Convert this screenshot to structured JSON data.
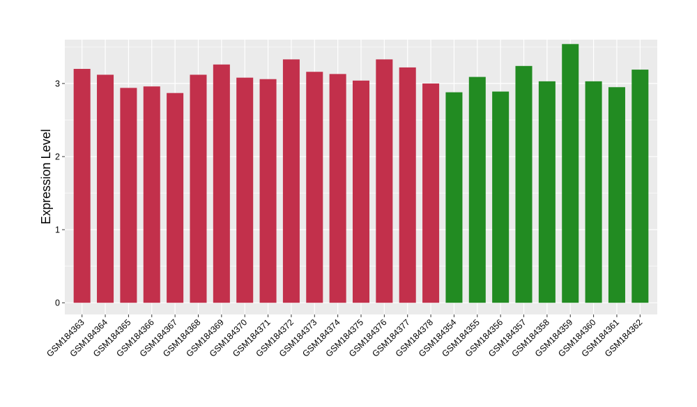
{
  "chart_data": {
    "type": "bar",
    "ylabel": "Expression Level",
    "xlabel": "",
    "title": "",
    "ylim": [
      -0.16,
      3.6
    ],
    "yticks": [
      0,
      1,
      2,
      3
    ],
    "grid": true,
    "background": "#EBEBEB",
    "group_colors": [
      "#C2304B",
      "#228B22"
    ],
    "categories": [
      "GSM184363",
      "GSM184364",
      "GSM184365",
      "GSM184366",
      "GSM184367",
      "GSM184368",
      "GSM184369",
      "GSM184370",
      "GSM184371",
      "GSM184372",
      "GSM184373",
      "GSM184374",
      "GSM184375",
      "GSM184376",
      "GSM184377",
      "GSM184378",
      "GSM184354",
      "GSM184355",
      "GSM184356",
      "GSM184357",
      "GSM184358",
      "GSM184359",
      "GSM184360",
      "GSM184361",
      "GSM184362"
    ],
    "values": [
      3.2,
      3.12,
      2.94,
      2.96,
      2.87,
      3.12,
      3.26,
      3.08,
      3.06,
      3.33,
      3.16,
      3.13,
      3.04,
      3.33,
      3.22,
      3.0,
      2.88,
      3.09,
      2.89,
      3.24,
      3.03,
      3.54,
      3.03,
      2.95,
      3.19
    ],
    "groups": [
      0,
      0,
      0,
      0,
      0,
      0,
      0,
      0,
      0,
      0,
      0,
      0,
      0,
      0,
      0,
      0,
      1,
      1,
      1,
      1,
      1,
      1,
      1,
      1,
      1
    ]
  }
}
